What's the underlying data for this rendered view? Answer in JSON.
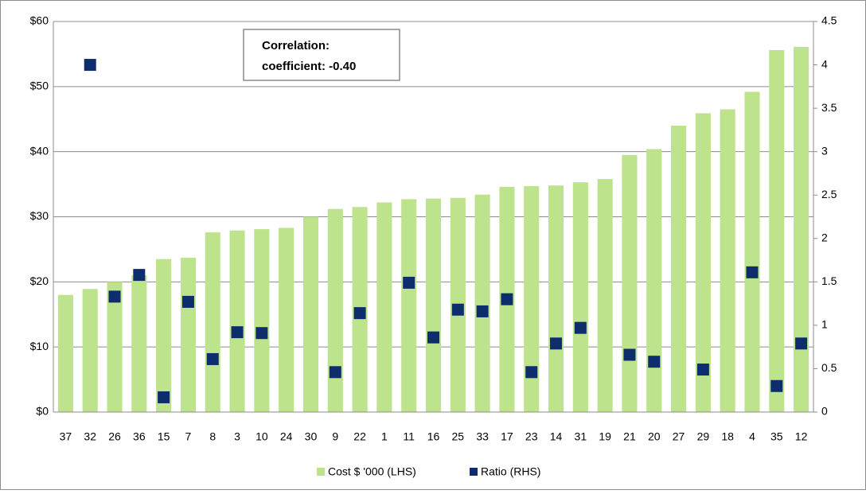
{
  "chart_data": {
    "type": "bar",
    "categories": [
      "37",
      "32",
      "26",
      "36",
      "15",
      "7",
      "8",
      "3",
      "10",
      "24",
      "30",
      "9",
      "22",
      "1",
      "11",
      "16",
      "25",
      "33",
      "17",
      "23",
      "14",
      "31",
      "19",
      "21",
      "20",
      "27",
      "29",
      "18",
      "4",
      "35",
      "12"
    ],
    "series": [
      {
        "name": "Cost $ '000 (LHS)",
        "color": "#bde38c",
        "type": "bar",
        "values": [
          18.0,
          18.9,
          20.0,
          21.0,
          23.5,
          23.7,
          27.6,
          27.9,
          28.1,
          28.3,
          30.0,
          31.2,
          31.5,
          32.2,
          32.7,
          32.8,
          32.9,
          33.4,
          34.6,
          34.7,
          34.8,
          35.3,
          35.8,
          39.5,
          40.4,
          44.0,
          45.9,
          46.5,
          49.2,
          55.6,
          56.1
        ]
      },
      {
        "name": "Ratio (RHS)",
        "color": "#0d2d6c",
        "type": "scatter",
        "axis": "y2",
        "values": [
          null,
          4.0,
          1.33,
          1.58,
          0.17,
          1.27,
          0.61,
          0.92,
          0.91,
          null,
          null,
          0.46,
          1.14,
          null,
          1.49,
          0.86,
          1.18,
          1.16,
          1.3,
          0.46,
          0.79,
          0.97,
          null,
          0.66,
          0.58,
          null,
          0.49,
          null,
          1.61,
          0.3,
          0.79
        ]
      }
    ],
    "ylim": [
      0,
      60
    ],
    "yticks": [
      {
        "value": 0,
        "label": "$0"
      },
      {
        "value": 10,
        "label": "$10"
      },
      {
        "value": 20,
        "label": "$20"
      },
      {
        "value": 30,
        "label": "$30"
      },
      {
        "value": 40,
        "label": "$40"
      },
      {
        "value": 50,
        "label": "$50"
      },
      {
        "value": 60,
        "label": "$60"
      }
    ],
    "y2lim": [
      0,
      4.5
    ],
    "y2ticks": [
      0,
      0.5,
      1,
      1.5,
      2,
      2.5,
      3,
      3.5,
      4,
      4.5
    ],
    "grid": true,
    "legend": "bottom",
    "annotation": [
      "Correlation:",
      "coefficient: -0.40"
    ]
  }
}
